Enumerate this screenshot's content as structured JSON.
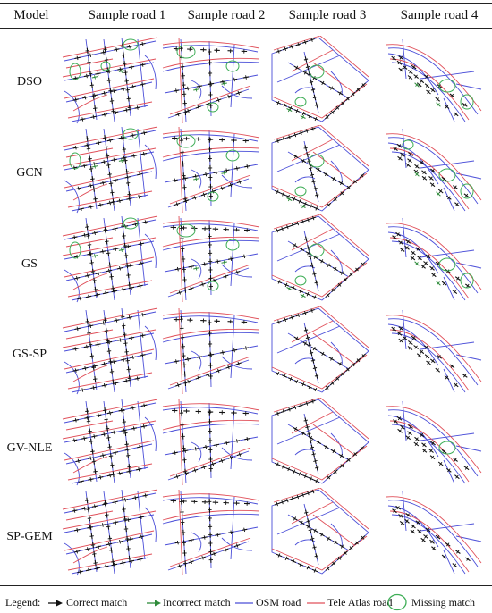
{
  "header": {
    "model": "Model",
    "samples": [
      "Sample road 1",
      "Sample road 2",
      "Sample road 3",
      "Sample road 4"
    ]
  },
  "rows": [
    "DSO",
    "GCN",
    "GS",
    "GS-SP",
    "GV-NLE",
    "SP-GEM"
  ],
  "legend": {
    "title": "Legend:",
    "correct": "Correct match",
    "incorrect": "Incorrect match",
    "osm": "OSM road",
    "tele": "Tele Atlas road",
    "missing": "Missing match"
  },
  "colors": {
    "osm": "#4a4ed8",
    "tele": "#e0505a",
    "correct": "#111111",
    "incorrect": "#2e8b3a",
    "missing": "#3fae57"
  },
  "missing_counts": {
    "DSO": [
      3,
      3,
      2,
      2
    ],
    "GCN": [
      2,
      3,
      2,
      3
    ],
    "GS": [
      2,
      3,
      2,
      2
    ],
    "GS-SP": [
      0,
      0,
      0,
      0
    ],
    "GV-NLE": [
      0,
      0,
      0,
      1
    ],
    "SP-GEM": [
      0,
      0,
      0,
      0
    ]
  }
}
